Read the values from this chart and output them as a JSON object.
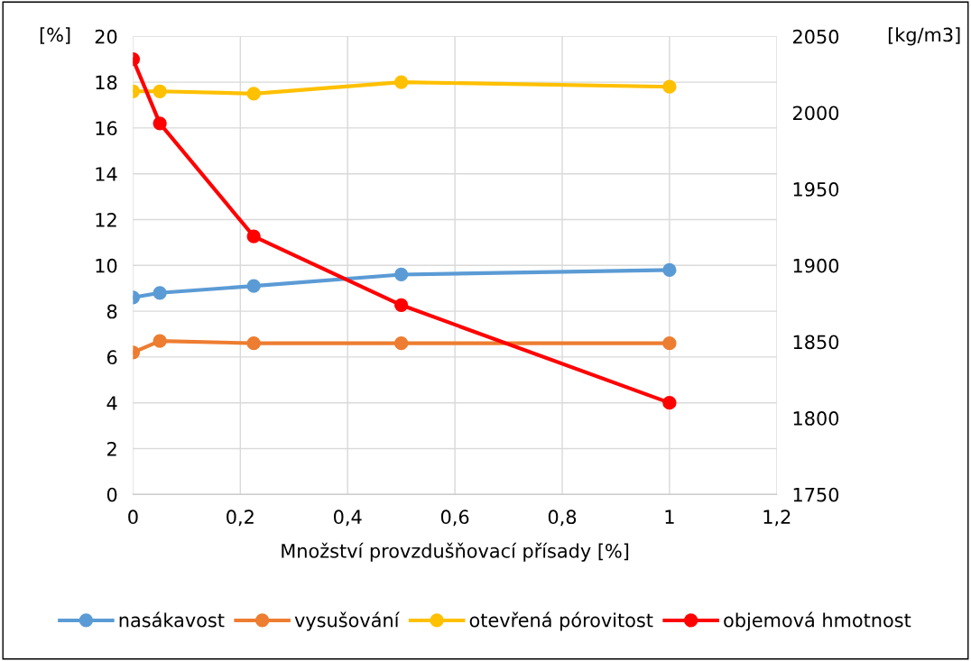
{
  "chart_data": {
    "type": "line",
    "xlabel": "Množství provzdušňovací přísady [%]",
    "ylabel": "[%]",
    "y2label": "[kg/m3]",
    "x": [
      0,
      0.05,
      0.225,
      0.5,
      1
    ],
    "series": [
      {
        "name": "nasákavost",
        "color": "#5b9bd5",
        "values": [
          8.6,
          8.8,
          9.1,
          9.6,
          9.8
        ]
      },
      {
        "name": "vysušování",
        "color": "#ed7d31",
        "values": [
          6.2,
          6.7,
          6.6,
          6.6,
          6.6
        ]
      },
      {
        "name": "otevřená pórovitost",
        "color": "#ffc000",
        "values": [
          17.6,
          17.6,
          17.5,
          18.0,
          17.8
        ]
      },
      {
        "name": "objemová hmotnost",
        "color": "#ff0000",
        "values": [
          2035,
          1993,
          1919,
          1874,
          1810
        ],
        "axis": "y2"
      }
    ],
    "xlim": [
      0,
      1.2
    ],
    "xticks": [
      0,
      {
        "value": 0.2,
        "label": "0,2"
      },
      {
        "value": 0.4,
        "label": "0,4"
      },
      {
        "value": 0.6,
        "label": "0,6"
      },
      {
        "value": 0.8,
        "label": "0,8"
      },
      1,
      {
        "value": 1.2,
        "label": "1,2"
      }
    ],
    "ylim": [
      0,
      20
    ],
    "yticks": [
      0,
      2,
      4,
      6,
      8,
      10,
      12,
      14,
      16,
      18,
      20
    ],
    "y2lim": [
      1750,
      2050
    ],
    "y2ticks": [
      1750,
      1800,
      1850,
      1900,
      1950,
      2000,
      2050
    ],
    "grid": true,
    "legend": "bottom",
    "marker": "circle",
    "line_style": "solid"
  }
}
